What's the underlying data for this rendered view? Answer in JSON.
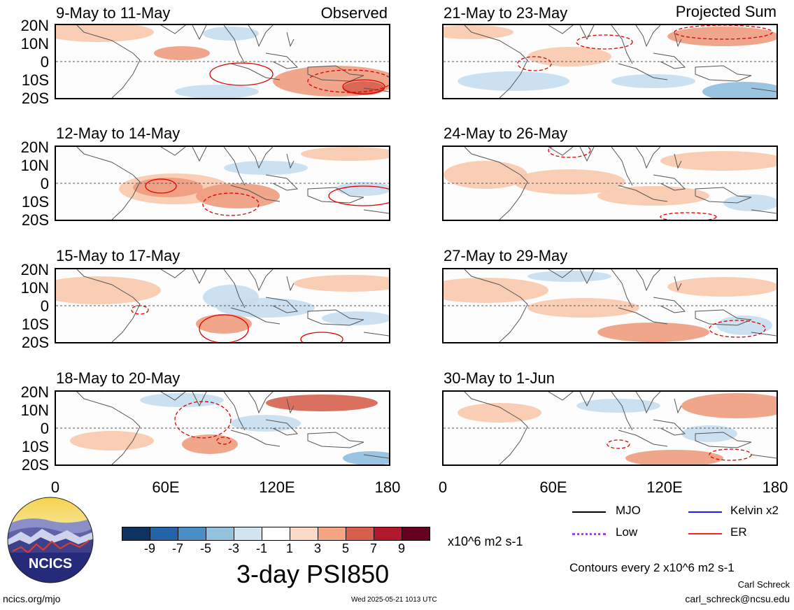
{
  "corner_tags": {
    "left": "Observed",
    "right": "Projected Sum"
  },
  "panels": [
    {
      "title": "9-May to 11-May"
    },
    {
      "title": "12-May to 14-May"
    },
    {
      "title": "15-May to 17-May"
    },
    {
      "title": "18-May to 20-May"
    },
    {
      "title": "21-May to 23-May"
    },
    {
      "title": "24-May to 26-May"
    },
    {
      "title": "27-May to 29-May"
    },
    {
      "title": "30-May to 1-Jun"
    }
  ],
  "lat_labels": [
    "20N",
    "10N",
    "0",
    "10S",
    "20S"
  ],
  "lon_labels": [
    "0",
    "60E",
    "120E",
    "180"
  ],
  "colorbar": {
    "colors": [
      "#0d3360",
      "#2363a8",
      "#4a8ec6",
      "#92c2de",
      "#d1e5f0",
      "#ffffff",
      "#fbdbc7",
      "#f4a582",
      "#d6604d",
      "#b2182b",
      "#67001f"
    ],
    "labels": [
      "-9",
      "-7",
      "-5",
      "-3",
      "-1",
      "1",
      "3",
      "5",
      "7",
      "9"
    ],
    "units": "x10^6 m2 s-1"
  },
  "main_title": "3-day PSI850",
  "legend": [
    {
      "label": "MJO",
      "color": "#000000"
    },
    {
      "label": "Kelvin x2",
      "color": "#1a1aff"
    },
    {
      "label": "Low",
      "color": "#a040ff"
    },
    {
      "label": "ER",
      "color": "#ff2020"
    }
  ],
  "contours_note": "Contours every 2 x10^6 m2 s-1",
  "author": "Carl Schreck",
  "email": "carl_schreck@ncsu.edu",
  "site": "ncics.org/mjo",
  "timestamp": "Wed 2025-05-21 1013 UTC",
  "logo_text": "NCICS",
  "colors": {
    "warm": "#f4a582",
    "cool": "#92c2de",
    "contour": "#e00000"
  }
}
